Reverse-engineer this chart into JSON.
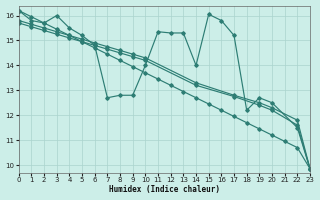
{
  "bg_color": "#cceee8",
  "line_color": "#2d7d74",
  "grid_color": "#aad4ce",
  "xlabel": "Humidex (Indice chaleur)",
  "xlim": [
    0,
    23
  ],
  "ylim": [
    9.7,
    16.4
  ],
  "yticks": [
    10,
    11,
    12,
    13,
    14,
    15,
    16
  ],
  "xticks": [
    0,
    1,
    2,
    3,
    4,
    5,
    6,
    7,
    8,
    9,
    10,
    11,
    12,
    13,
    14,
    15,
    16,
    17,
    18,
    19,
    20,
    21,
    22,
    23
  ],
  "line1_x": [
    0,
    1,
    2,
    3,
    4,
    5,
    6,
    7,
    8,
    9,
    10,
    11,
    12,
    13,
    14,
    15,
    16,
    17,
    18,
    19,
    20,
    22,
    23
  ],
  "line1_y": [
    16.2,
    15.8,
    15.7,
    16.0,
    15.5,
    15.2,
    14.8,
    12.7,
    12.8,
    12.8,
    14.0,
    15.35,
    15.3,
    15.3,
    14.0,
    16.05,
    15.8,
    15.2,
    12.2,
    12.7,
    12.5,
    11.5,
    9.85
  ],
  "line2_x": [
    0,
    1,
    2,
    3,
    4,
    5,
    6,
    7,
    8,
    9,
    10,
    11,
    12,
    13,
    14,
    15,
    16,
    17,
    18,
    19,
    20,
    21,
    22,
    23
  ],
  "line2_y": [
    16.2,
    15.95,
    15.7,
    15.45,
    15.2,
    14.95,
    14.7,
    14.45,
    14.2,
    13.95,
    13.7,
    13.45,
    13.2,
    12.95,
    12.7,
    12.45,
    12.2,
    11.95,
    11.7,
    11.45,
    11.2,
    10.95,
    10.7,
    9.85
  ],
  "line3_x": [
    0,
    1,
    2,
    3,
    4,
    5,
    6,
    7,
    8,
    9,
    10,
    14,
    17,
    19,
    20,
    22,
    23
  ],
  "line3_y": [
    15.8,
    15.65,
    15.5,
    15.35,
    15.2,
    15.05,
    14.9,
    14.75,
    14.6,
    14.45,
    14.3,
    13.3,
    12.8,
    12.5,
    12.3,
    11.8,
    9.85
  ],
  "line4_x": [
    0,
    1,
    2,
    3,
    4,
    5,
    6,
    7,
    8,
    9,
    10,
    14,
    17,
    19,
    20,
    22,
    23
  ],
  "line4_y": [
    15.7,
    15.55,
    15.4,
    15.25,
    15.1,
    14.95,
    14.8,
    14.65,
    14.5,
    14.35,
    14.2,
    13.2,
    12.75,
    12.4,
    12.2,
    11.6,
    9.85
  ]
}
